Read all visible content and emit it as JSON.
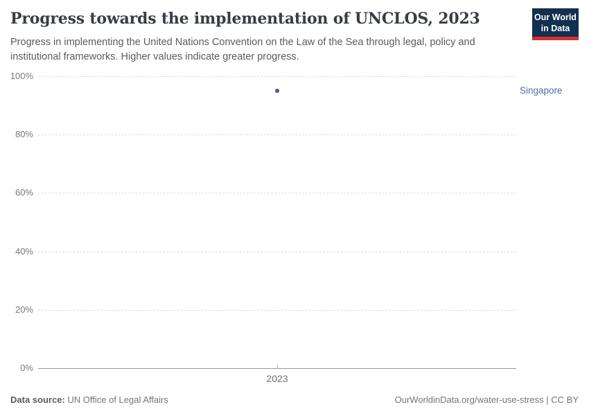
{
  "header": {
    "title": "Progress towards the implementation of UNCLOS, 2023",
    "subtitle": "Progress in implementing the United Nations Convention on the Law of the Sea through legal, policy and institutional frameworks. Higher values indicate greater progress.",
    "logo": {
      "line1": "Our World",
      "line2": "in Data",
      "bg_color": "#12304f",
      "accent_color": "#dc2c2c"
    }
  },
  "chart_data": {
    "type": "scatter",
    "title": "Progress towards the implementation of UNCLOS, 2023",
    "x": [
      2023
    ],
    "series": [
      {
        "name": "Singapore",
        "values": [
          95
        ],
        "color": "#44569c"
      }
    ],
    "xlabel": "",
    "ylabel": "",
    "ylim": [
      0,
      100
    ],
    "xticks": [
      "2023"
    ],
    "yticks": [
      "0%",
      "20%",
      "40%",
      "60%",
      "80%",
      "100%"
    ],
    "grid": "horizontal-dashed",
    "legend": "entity-label-right-of-plot"
  },
  "annotations": {
    "point_label": "Singapore"
  },
  "footer": {
    "source_label": "Data source:",
    "source_value": " UN Office of Legal Affairs",
    "credit": "OurWorldinData.org/water-use-stress | CC BY"
  }
}
